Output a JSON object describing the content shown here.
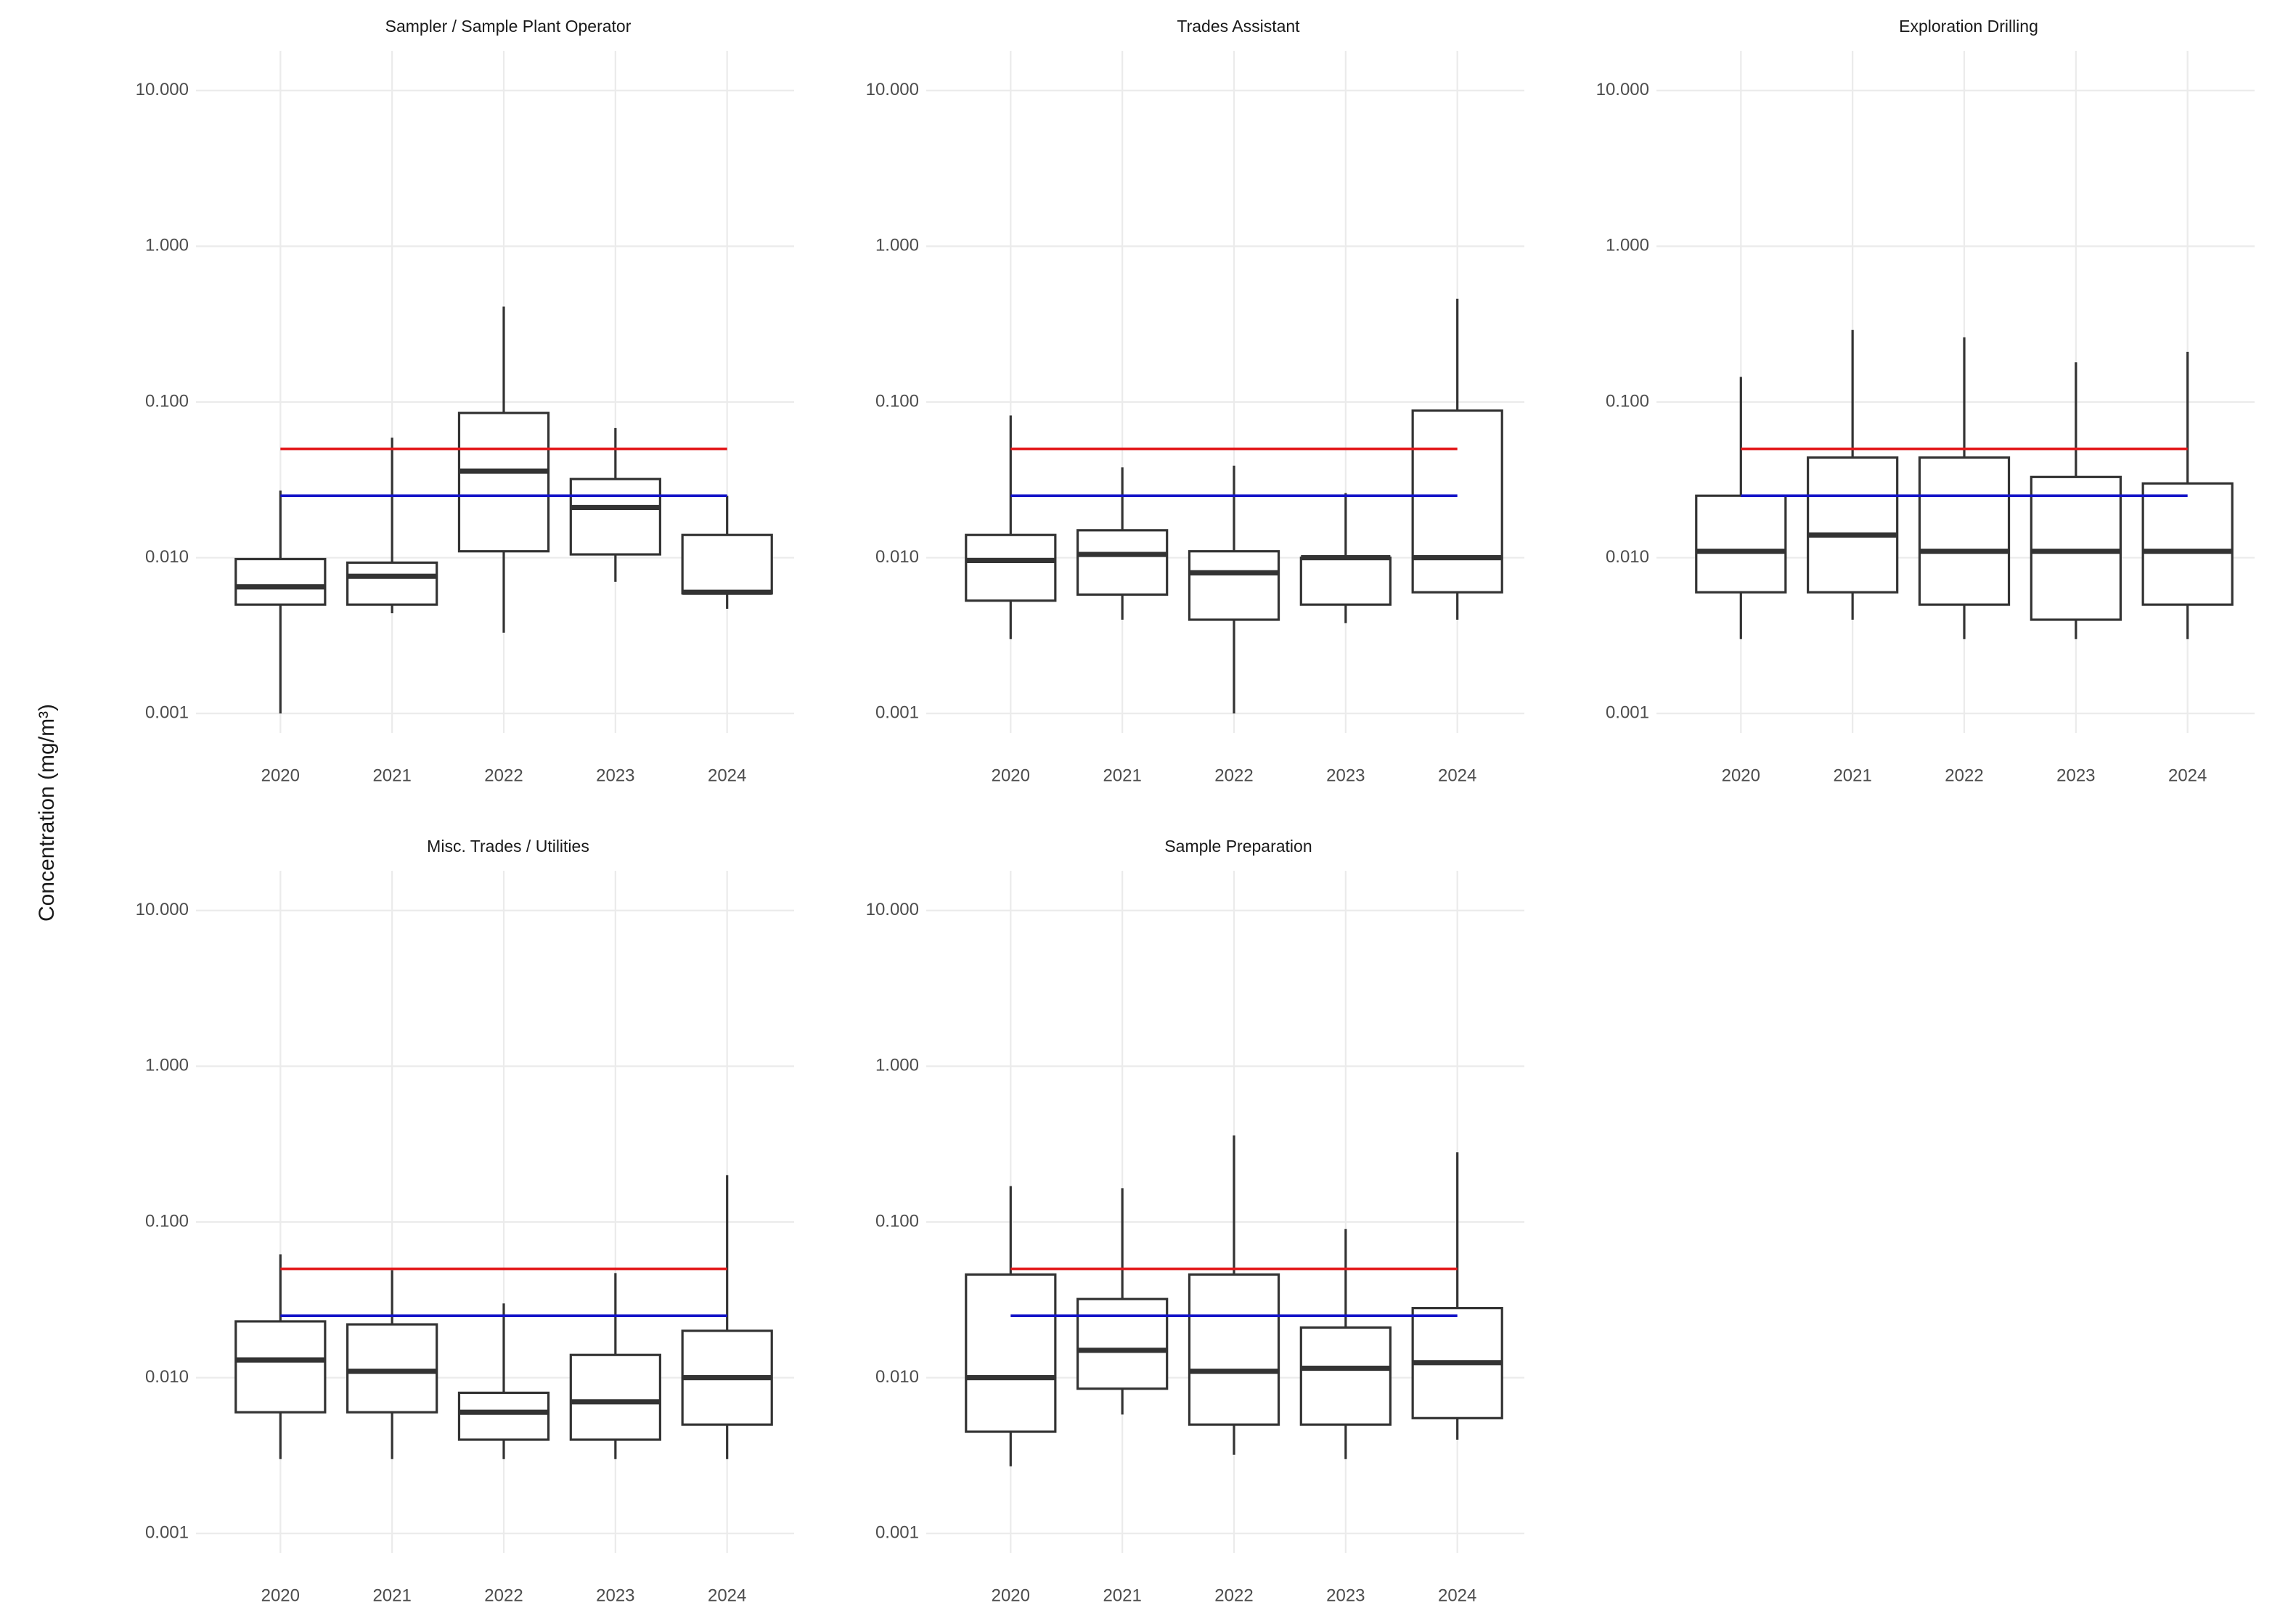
{
  "ylabel": "Concentration (mg/m³)",
  "chart_data": [
    {
      "type": "box",
      "title": "Sampler / Sample Plant Operator",
      "categories": [
        "2020",
        "2021",
        "2022",
        "2023",
        "2024"
      ],
      "min": [
        0.001,
        0.0044,
        0.0033,
        0.007,
        0.0047
      ],
      "q1": [
        0.005,
        0.005,
        0.011,
        0.0105,
        0.0059
      ],
      "median": [
        0.0065,
        0.0076,
        0.036,
        0.021,
        0.006
      ],
      "q3": [
        0.0098,
        0.0093,
        0.085,
        0.032,
        0.014
      ],
      "max": [
        0.027,
        0.059,
        0.41,
        0.068,
        0.025
      ],
      "color": "#333333",
      "log_scale": true,
      "grid": true,
      "reference_lines": [
        {
          "value": 0.05,
          "color": "#e31a1c"
        },
        {
          "value": 0.025,
          "color": "#1515c8"
        }
      ],
      "ylim": [
        0.00075,
        18
      ],
      "yticks": [
        {
          "value": 0.001,
          "label": "0.001"
        },
        {
          "value": 0.01,
          "label": "0.010"
        },
        {
          "value": 0.1,
          "label": "0.100"
        },
        {
          "value": 1,
          "label": "1.000"
        },
        {
          "value": 10,
          "label": "10.000"
        }
      ]
    },
    {
      "type": "box",
      "title": "Trades Assistant",
      "categories": [
        "2020",
        "2021",
        "2022",
        "2023",
        "2024"
      ],
      "min": [
        0.003,
        0.004,
        0.001,
        0.0038,
        0.004
      ],
      "q1": [
        0.0053,
        0.0058,
        0.004,
        0.005,
        0.006
      ],
      "median": [
        0.0096,
        0.0105,
        0.008,
        0.01,
        0.01
      ],
      "q3": [
        0.014,
        0.015,
        0.011,
        0.01,
        0.088
      ],
      "max": [
        0.082,
        0.038,
        0.039,
        0.026,
        0.46
      ],
      "color": "#333333",
      "log_scale": true,
      "grid": true,
      "reference_lines": [
        {
          "value": 0.05,
          "color": "#e31a1c"
        },
        {
          "value": 0.025,
          "color": "#1515c8"
        }
      ],
      "ylim": [
        0.00075,
        18
      ],
      "yticks": [
        {
          "value": 0.001,
          "label": "0.001"
        },
        {
          "value": 0.01,
          "label": "0.010"
        },
        {
          "value": 0.1,
          "label": "0.100"
        },
        {
          "value": 1,
          "label": "1.000"
        },
        {
          "value": 10,
          "label": "10.000"
        }
      ]
    },
    {
      "type": "box",
      "title": "Exploration Drilling",
      "categories": [
        "2020",
        "2021",
        "2022",
        "2023",
        "2024"
      ],
      "min": [
        0.003,
        0.004,
        0.003,
        0.003,
        0.003
      ],
      "q1": [
        0.006,
        0.006,
        0.005,
        0.004,
        0.005
      ],
      "median": [
        0.011,
        0.014,
        0.011,
        0.011,
        0.011
      ],
      "q3": [
        0.025,
        0.044,
        0.044,
        0.033,
        0.03
      ],
      "max": [
        0.145,
        0.29,
        0.26,
        0.18,
        0.21
      ],
      "color": "#333333",
      "log_scale": true,
      "grid": true,
      "reference_lines": [
        {
          "value": 0.05,
          "color": "#e31a1c"
        },
        {
          "value": 0.025,
          "color": "#1515c8"
        }
      ],
      "ylim": [
        0.00075,
        18
      ],
      "yticks": [
        {
          "value": 0.001,
          "label": "0.001"
        },
        {
          "value": 0.01,
          "label": "0.010"
        },
        {
          "value": 0.1,
          "label": "0.100"
        },
        {
          "value": 1,
          "label": "1.000"
        },
        {
          "value": 10,
          "label": "10.000"
        }
      ]
    },
    {
      "type": "box",
      "title": "Misc. Trades / Utilities",
      "categories": [
        "2020",
        "2021",
        "2022",
        "2023",
        "2024"
      ],
      "min": [
        0.003,
        0.003,
        0.003,
        0.003,
        0.003
      ],
      "q1": [
        0.006,
        0.006,
        0.004,
        0.004,
        0.005
      ],
      "median": [
        0.013,
        0.011,
        0.006,
        0.007,
        0.01
      ],
      "q3": [
        0.023,
        0.022,
        0.008,
        0.014,
        0.02
      ],
      "max": [
        0.062,
        0.049,
        0.03,
        0.047,
        0.2
      ],
      "color": "#333333",
      "log_scale": true,
      "grid": true,
      "reference_lines": [
        {
          "value": 0.05,
          "color": "#e31a1c"
        },
        {
          "value": 0.025,
          "color": "#1515c8"
        }
      ],
      "ylim": [
        0.00075,
        18
      ],
      "yticks": [
        {
          "value": 0.001,
          "label": "0.001"
        },
        {
          "value": 0.01,
          "label": "0.010"
        },
        {
          "value": 0.1,
          "label": "0.100"
        },
        {
          "value": 1,
          "label": "1.000"
        },
        {
          "value": 10,
          "label": "10.000"
        }
      ]
    },
    {
      "type": "box",
      "title": "Sample Preparation",
      "categories": [
        "2020",
        "2021",
        "2022",
        "2023",
        "2024"
      ],
      "min": [
        0.0027,
        0.0058,
        0.0032,
        0.003,
        0.004
      ],
      "q1": [
        0.0045,
        0.0085,
        0.005,
        0.005,
        0.0055
      ],
      "median": [
        0.01,
        0.015,
        0.011,
        0.0115,
        0.0125
      ],
      "q3": [
        0.046,
        0.032,
        0.046,
        0.021,
        0.028
      ],
      "max": [
        0.17,
        0.165,
        0.36,
        0.09,
        0.28
      ],
      "color": "#333333",
      "log_scale": true,
      "grid": true,
      "reference_lines": [
        {
          "value": 0.05,
          "color": "#e31a1c"
        },
        {
          "value": 0.025,
          "color": "#1515c8"
        }
      ],
      "ylim": [
        0.00075,
        18
      ],
      "yticks": [
        {
          "value": 0.001,
          "label": "0.001"
        },
        {
          "value": 0.01,
          "label": "0.010"
        },
        {
          "value": 0.1,
          "label": "0.100"
        },
        {
          "value": 1,
          "label": "1.000"
        },
        {
          "value": 10,
          "label": "10.000"
        }
      ]
    }
  ]
}
